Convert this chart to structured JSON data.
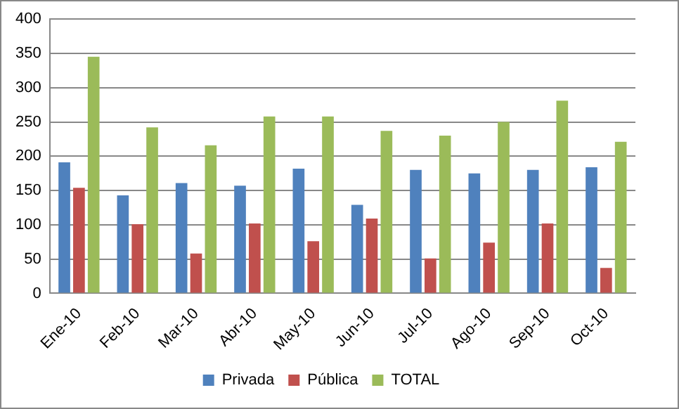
{
  "chart_data": {
    "type": "bar",
    "categories": [
      "Ene-10",
      "Feb-10",
      "Mar-10",
      "Abr-10",
      "May-10",
      "Jun-10",
      "Jul-10",
      "Ago-10",
      "Sep-10",
      "Oct-10"
    ],
    "series": [
      {
        "name": "Privada",
        "color": "#4f81bd",
        "values": [
          191,
          143,
          161,
          157,
          182,
          129,
          180,
          175,
          180,
          184
        ]
      },
      {
        "name": "Pública",
        "color": "#c0504d",
        "values": [
          154,
          101,
          58,
          102,
          76,
          109,
          51,
          74,
          102,
          37
        ]
      },
      {
        "name": "TOTAL",
        "color": "#9bbb59",
        "values": [
          345,
          242,
          216,
          258,
          258,
          237,
          230,
          250,
          281,
          221
        ]
      }
    ],
    "ylim": [
      0,
      400
    ],
    "yticks": [
      0,
      50,
      100,
      150,
      200,
      250,
      300,
      350,
      400
    ],
    "grid": "y",
    "legend": "bottom"
  }
}
